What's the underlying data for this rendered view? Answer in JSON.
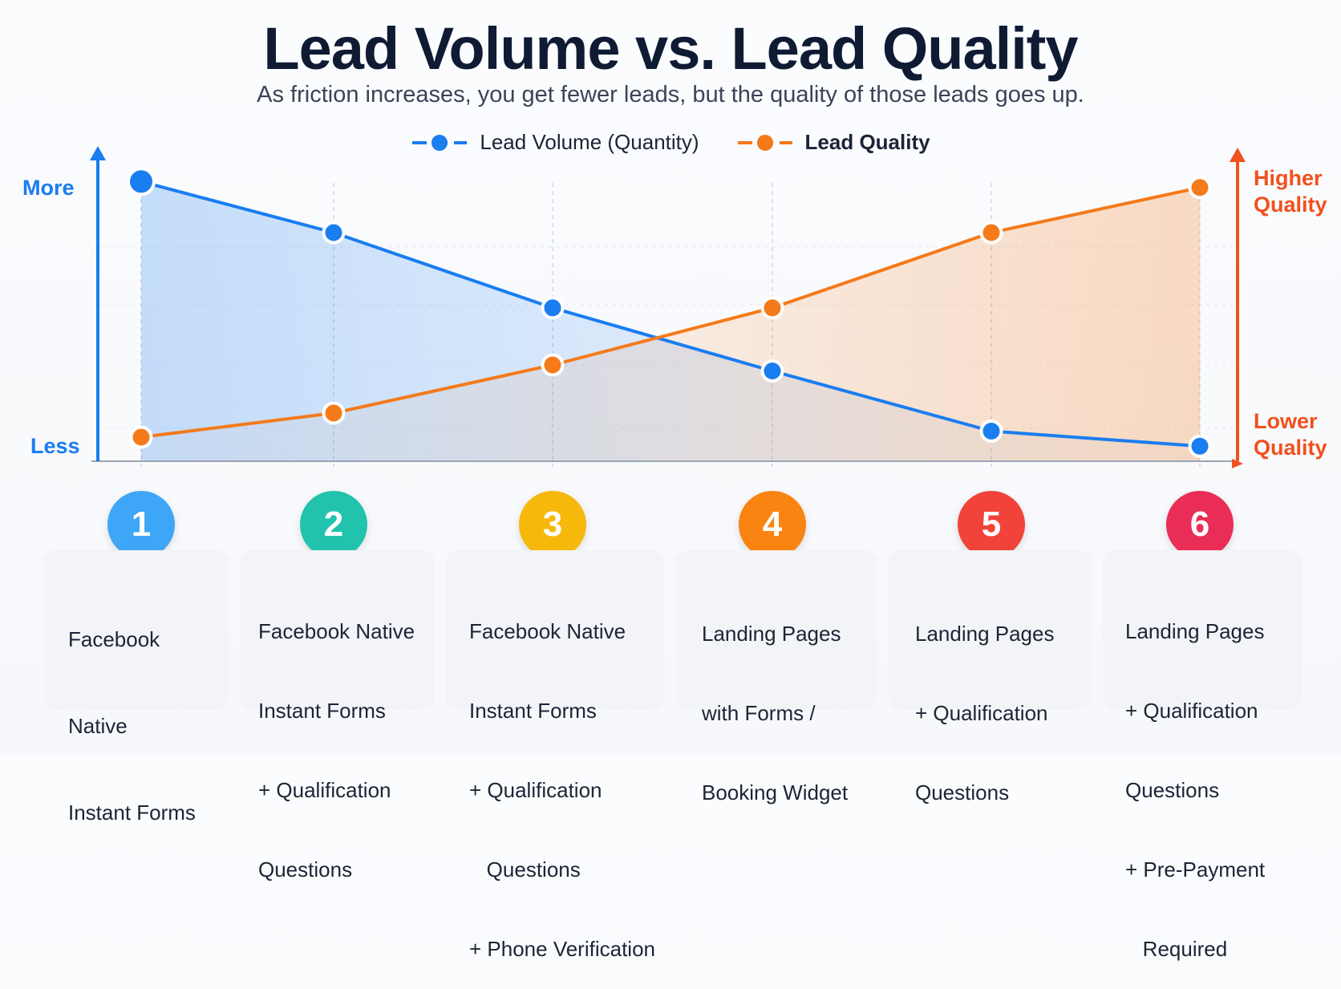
{
  "header": {
    "title": "Lead Volume vs. Lead Quality",
    "subtitle": "As friction increases, you get fewer leads, but the quality of those leads goes up."
  },
  "legend": {
    "volume": "Lead Volume (Quantity)",
    "quality": "Lead Quality"
  },
  "axes": {
    "left_top": "More",
    "left_bottom": "Less",
    "right_top_1": "Higher",
    "right_top_2": "Quality",
    "right_bottom_1": "Lower",
    "right_bottom_2": "Quality"
  },
  "colors": {
    "volume": "#1a7df0",
    "quality": "#f47a1a",
    "quality_axis": "#f2501d"
  },
  "chart_data": {
    "type": "line",
    "categories": [
      "1",
      "2",
      "3",
      "4",
      "5",
      "6"
    ],
    "ylim": [
      0,
      100
    ],
    "grid": true,
    "legend_position": "top-center",
    "series": [
      {
        "name": "Lead Volume (Quantity)",
        "values": [
          93,
          76,
          51,
          30,
          10,
          5
        ]
      },
      {
        "name": "Lead Quality",
        "values": [
          8,
          16,
          32,
          51,
          76,
          91
        ]
      }
    ]
  },
  "steps": [
    {
      "number": "1",
      "color": "#3ea6f6",
      "lines": [
        "Facebook",
        "Native",
        "Instant Forms"
      ]
    },
    {
      "number": "2",
      "color": "#22c3ad",
      "lines": [
        "Facebook Native",
        "Instant Forms",
        "+ Qualification",
        "Questions"
      ]
    },
    {
      "number": "3",
      "color": "#f7b80c",
      "lines": [
        "Facebook Native",
        "Instant Forms",
        "+ Qualification",
        "   Questions",
        "+ Phone Verification"
      ]
    },
    {
      "number": "4",
      "color": "#f98412",
      "lines": [
        "Landing Pages",
        "with Forms /",
        "Booking Widget"
      ]
    },
    {
      "number": "5",
      "color": "#f2433a",
      "lines": [
        "Landing Pages",
        "+ Qualification",
        "Questions"
      ]
    },
    {
      "number": "6",
      "color": "#ea2d57",
      "lines": [
        "Landing Pages",
        "+ Qualification",
        "Questions",
        "+ Pre-Payment",
        "   Required"
      ]
    }
  ]
}
